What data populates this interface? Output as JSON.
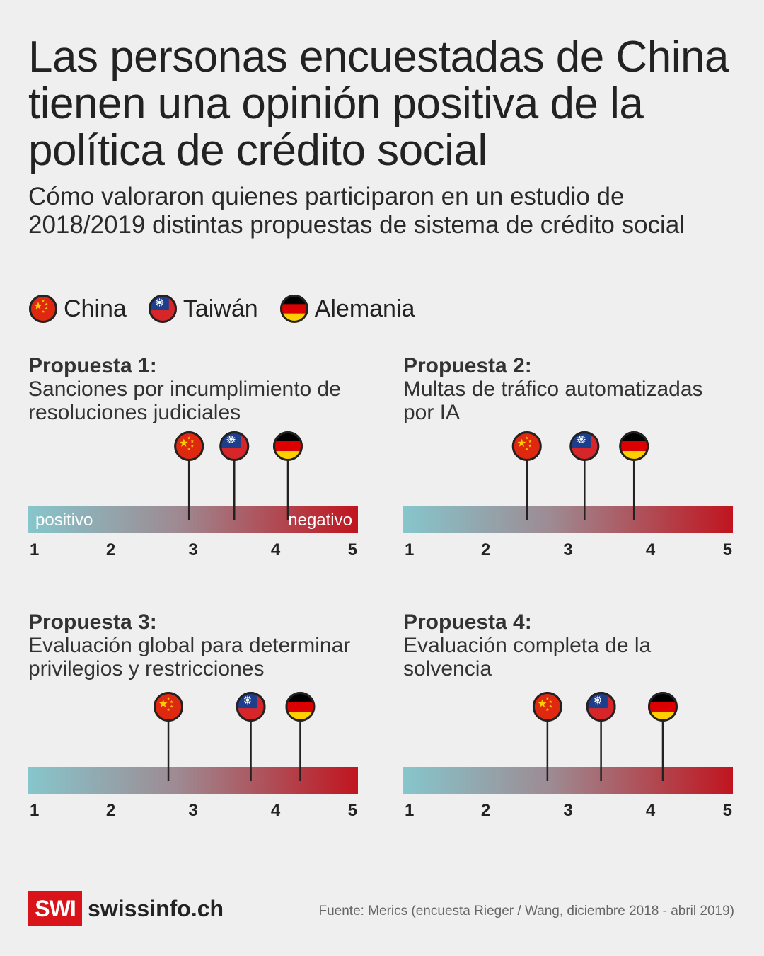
{
  "title": "Las personas encuestadas de China tienen una opinión positiva de la política de crédito social",
  "subtitle": "Cómo valoraron quienes participaron en un estudio de 2018/2019 distintas propuestas de sistema de crédito social",
  "legend": [
    {
      "label": "China",
      "flag": "china-flag-icon"
    },
    {
      "label": "Taiwán",
      "flag": "taiwan-flag-icon"
    },
    {
      "label": "Alemania",
      "flag": "germany-flag-icon"
    }
  ],
  "colors": {
    "positive": "#86c6cc",
    "negative": "#c0151f",
    "china": "#de2910",
    "taiwan_red": "#d6262a",
    "taiwan_blue": "#1d3e8a",
    "germany_gold": "#ffce00"
  },
  "scale_labels": {
    "positive": "positivo",
    "negative": "negativo"
  },
  "ticks": [
    "1",
    "2",
    "3",
    "4",
    "5"
  ],
  "chart_data": [
    {
      "type": "scatter",
      "number": "Propuesta 1:",
      "description": "Sanciones por incumplimiento de resoluciones judiciales",
      "xlim": [
        1,
        5
      ],
      "series": [
        {
          "name": "China",
          "value": 2.95
        },
        {
          "name": "Taiwán",
          "value": 3.5
        },
        {
          "name": "Alemania",
          "value": 4.15
        }
      ]
    },
    {
      "type": "scatter",
      "number": "Propuesta 2:",
      "description": "Multas de tráfico automatizadas por IA",
      "xlim": [
        1,
        5
      ],
      "series": [
        {
          "name": "China",
          "value": 2.5
        },
        {
          "name": "Taiwán",
          "value": 3.2
        },
        {
          "name": "Alemania",
          "value": 3.8
        }
      ]
    },
    {
      "type": "scatter",
      "number": "Propuesta 3:",
      "description": "Evaluación global para determinar privilegios y restricciones",
      "xlim": [
        1,
        5
      ],
      "series": [
        {
          "name": "China",
          "value": 2.7
        },
        {
          "name": "Taiwán",
          "value": 3.7
        },
        {
          "name": "Alemania",
          "value": 4.3
        }
      ]
    },
    {
      "type": "scatter",
      "number": "Propuesta 4:",
      "description": "Evaluación completa de la solvencia",
      "xlim": [
        1,
        5
      ],
      "series": [
        {
          "name": "China",
          "value": 2.75
        },
        {
          "name": "Taiwán",
          "value": 3.4
        },
        {
          "name": "Alemania",
          "value": 4.15
        }
      ]
    }
  ],
  "footer": {
    "logo": "SWI",
    "brand": "swissinfo.ch",
    "source": "Fuente: Merics (encuesta Rieger / Wang, diciembre 2018 - abril 2019)"
  }
}
